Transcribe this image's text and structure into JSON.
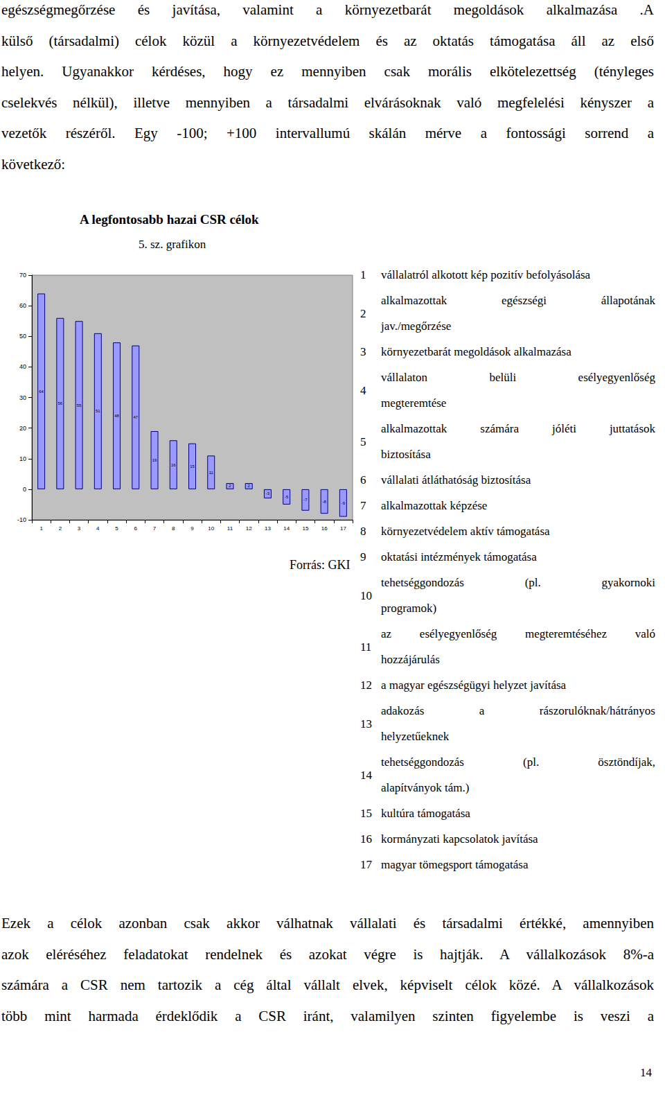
{
  "paragraph_top": [
    "egészségmegőrzése és javítása, valamint a környezetbarát megoldások alkalmazása .A",
    "külső (társadalmi) célok közül a környezetvédelem és az oktatás támogatása áll az első",
    "helyen. Ugyanakkor kérdéses, hogy ez mennyiben csak morális elkötelezettség (tényleges",
    "cselekvés nélkül), illetve mennyiben a társadalmi elvárásoknak való megfelelési kényszer a",
    "vezetők részéről. Egy -100; +100 intervallumú skálán mérve a fontossági sorrend a",
    "következő:"
  ],
  "chart_title": "A legfontosabb hazai CSR célok",
  "chart_subtitle": "5. sz. grafikon",
  "chart_data": {
    "type": "bar",
    "categories": [
      "1",
      "2",
      "3",
      "4",
      "5",
      "6",
      "7",
      "8",
      "9",
      "10",
      "11",
      "12",
      "13",
      "14",
      "15",
      "16",
      "17"
    ],
    "values": [
      64,
      56,
      55,
      51,
      48,
      47,
      19,
      16,
      15,
      11,
      2,
      2,
      -3,
      -5,
      -7,
      -8,
      -9
    ],
    "color": "#9999ff",
    "ylim": [
      -10,
      70
    ],
    "yticks": [
      -10,
      0,
      10,
      20,
      30,
      40,
      50,
      60,
      70
    ],
    "grid": false,
    "data_labels": true
  },
  "legend_items": [
    {
      "number": "1",
      "lines": [
        "vállalatról alkotott kép pozitív befolyásolása"
      ]
    },
    {
      "number": "2",
      "lines": [
        "alkalmazottak egészségi állapotának",
        "jav./megőrzése"
      ]
    },
    {
      "number": "3",
      "lines": [
        "környezetbarát megoldások alkalmazása"
      ]
    },
    {
      "number": "4",
      "lines": [
        "vállalaton belüli esélyegyenlőség",
        "megteremtése"
      ]
    },
    {
      "number": "5",
      "lines": [
        "alkalmazottak számára jóléti juttatások",
        "biztosítása"
      ]
    },
    {
      "number": "6",
      "lines": [
        "vállalati átláthatóság biztosítása"
      ]
    },
    {
      "number": "7",
      "lines": [
        "alkalmazottak képzése"
      ]
    },
    {
      "number": "8",
      "lines": [
        "környezetvédelem aktív támogatása"
      ]
    },
    {
      "number": "9",
      "lines": [
        "oktatási intézmények támogatása"
      ]
    },
    {
      "number": "10",
      "lines": [
        "tehetséggondozás (pl. gyakornoki",
        "programok)"
      ]
    },
    {
      "number": "11",
      "lines": [
        "az esélyegyenlőség megteremtéséhez való",
        "hozzájárulás"
      ]
    },
    {
      "number": "12",
      "lines": [
        "a magyar egészségügyi helyzet javítása"
      ]
    },
    {
      "number": "13",
      "lines": [
        "adakozás a rászorulóknak/hátrányos",
        "helyzetűeknek"
      ]
    },
    {
      "number": "14",
      "lines": [
        "tehetséggondozás (pl. ösztöndíjak,",
        "alapítványok tám.)"
      ]
    },
    {
      "number": "15",
      "lines": [
        "kultúra támogatása"
      ]
    },
    {
      "number": "16",
      "lines": [
        "kormányzati kapcsolatok javítása"
      ]
    },
    {
      "number": "17",
      "lines": [
        "magyar tömegsport támogatása"
      ]
    }
  ],
  "source": "Forrás: GKI",
  "paragraph_bottom": [
    "Ezek a célok azonban csak akkor válhatnak vállalati és társadalmi értékké, amennyiben",
    "azok eléréséhez feladatokat rendelnek és azokat végre is hajtják. A vállalkozások 8%-a",
    "számára a CSR nem tartozik a cég által vállalt elvek, képviselt célok közé. A vállalkozások",
    "több mint harmada érdeklődik a CSR iránt, valamilyen szinten figyelembe is veszi a"
  ],
  "page_number": "14"
}
